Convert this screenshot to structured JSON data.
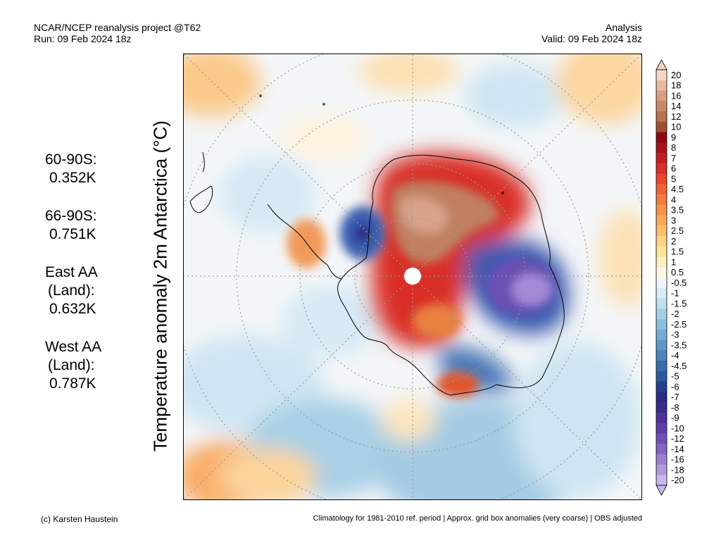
{
  "header": {
    "line1_left": "NCAR/NCEP reanalysis project @T62",
    "line2_left": "Run: 09 Feb 2024 18z",
    "line1_right": "Analysis",
    "line2_right": "Valid: 09 Feb 2024 18z"
  },
  "y_axis_label": "Temperature anomaly 2m Antarctica (°C)",
  "stats": [
    {
      "label": "60-90S:",
      "value": "0.352K"
    },
    {
      "label": "66-90S:",
      "value": "0.751K"
    },
    {
      "label_1": "East AA",
      "label_2": "(Land):",
      "value": "0.632K"
    },
    {
      "label_1": "West AA",
      "label_2": "(Land):",
      "value": "0.787K"
    }
  ],
  "colorbar": {
    "labels": [
      "20",
      "18",
      "16",
      "14",
      "12",
      "10",
      "9",
      "8",
      "7",
      "6",
      "5",
      "4.5",
      "4",
      "3.5",
      "3",
      "2.5",
      "2",
      "1.5",
      "1",
      "0.5",
      "-0.5",
      "-1",
      "-1.5",
      "-2",
      "-2.5",
      "-3",
      "-3.5",
      "-4",
      "-4.5",
      "-5",
      "-6",
      "-7",
      "-8",
      "-9",
      "-10",
      "-12",
      "-14",
      "-16",
      "-18",
      "-20"
    ],
    "colors": [
      "#f7d8c8",
      "#e8b8a0",
      "#d9a080",
      "#c98a6a",
      "#b8704f",
      "#a0502f",
      "#8b0a10",
      "#a8141a",
      "#c41e22",
      "#d8302a",
      "#e8462e",
      "#ef6236",
      "#f47a40",
      "#f7924c",
      "#f9a859",
      "#fbbf6b",
      "#fcd380",
      "#fde39a",
      "#feefbc",
      "#fdf7e2",
      "#eef6fb",
      "#d8edf7",
      "#c0e0f0",
      "#a6d0e8",
      "#8cbfdf",
      "#74abd4",
      "#5d96c8",
      "#4a82bb",
      "#3a6dae",
      "#2c58a0",
      "#243f92",
      "#2a2c84",
      "#3a2a8a",
      "#4c3198",
      "#5d3ea6",
      "#7050b6",
      "#8466c4",
      "#9a80d2",
      "#b09ade",
      "#c8b8ea"
    ]
  },
  "map": {
    "land_coast_color": "#000000",
    "graticule_color": "#9a9a9a"
  },
  "footer": {
    "left": "(c) Karsten Haustein",
    "right": "Climatology for 1981-2010 ref. period | Approx. grid box anomalies (very coarse) | OBS adjusted"
  }
}
